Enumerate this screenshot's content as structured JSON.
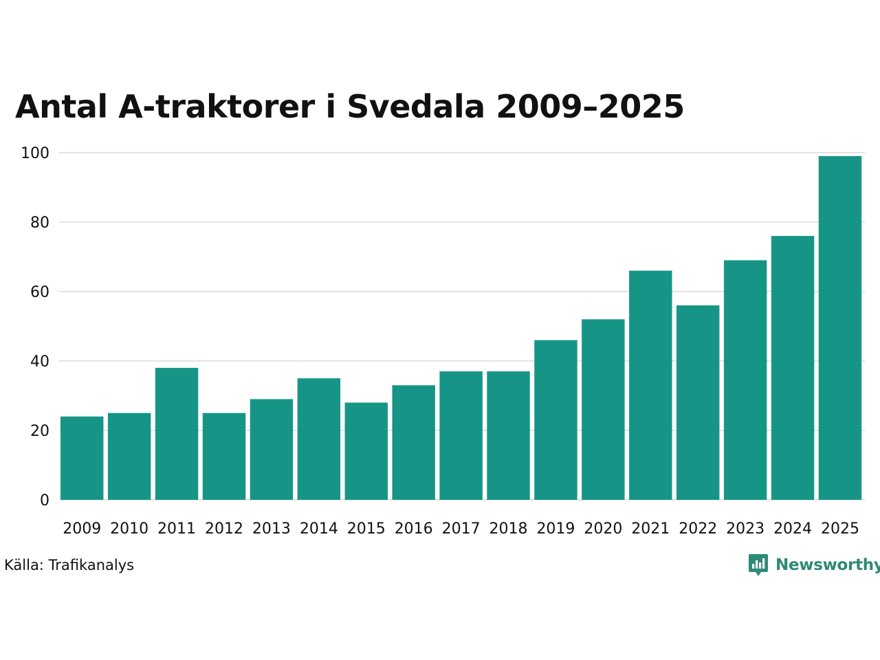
{
  "chart_data": {
    "type": "bar",
    "title": "Antal A-traktorer i Svedala 2009–2025",
    "xlabel": "",
    "ylabel": "",
    "categories": [
      "2009",
      "2010",
      "2011",
      "2012",
      "2013",
      "2014",
      "2015",
      "2016",
      "2017",
      "2018",
      "2019",
      "2020",
      "2021",
      "2022",
      "2023",
      "2024",
      "2025"
    ],
    "values": [
      24,
      25,
      38,
      25,
      29,
      35,
      28,
      33,
      37,
      37,
      46,
      52,
      66,
      56,
      69,
      76,
      99
    ],
    "ylim": [
      0,
      100
    ],
    "yticks": [
      0,
      20,
      40,
      60,
      80,
      100
    ],
    "grid": true,
    "bar_color": "#169587",
    "grid_color": "#e3e3e3"
  },
  "footer": {
    "source": "Källa: Trafikanalys",
    "brand": "Newsworthy",
    "brand_color": "#2f8a76",
    "brand_icon": "newsworthy-logo-icon"
  }
}
